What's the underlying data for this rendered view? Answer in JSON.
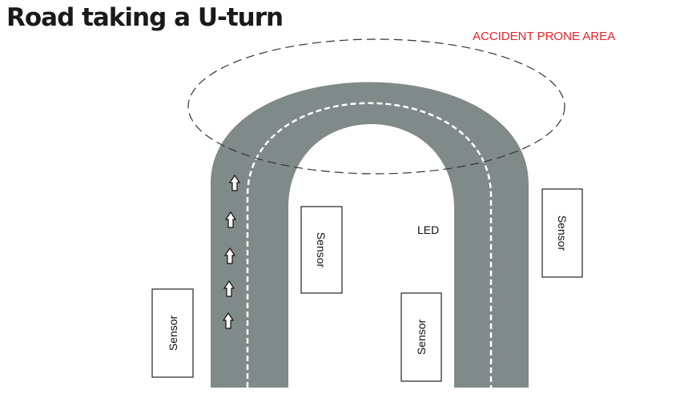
{
  "title": "Road taking a U-turn",
  "danger_zone_label": "ACCIDENT PRONE AREA",
  "led_label": "LED",
  "sensors": [
    {
      "label": "Sensor"
    },
    {
      "label": "Sensor"
    },
    {
      "label": "Sensor"
    },
    {
      "label": "Sensor"
    }
  ],
  "arrow_icon": "up-arrow-icon",
  "direction_arrow_count": 5,
  "colors": {
    "road": "#808a89",
    "lane_marking": "#ffffff",
    "danger_label": "#e8232a",
    "sensor_border": "#222222"
  }
}
